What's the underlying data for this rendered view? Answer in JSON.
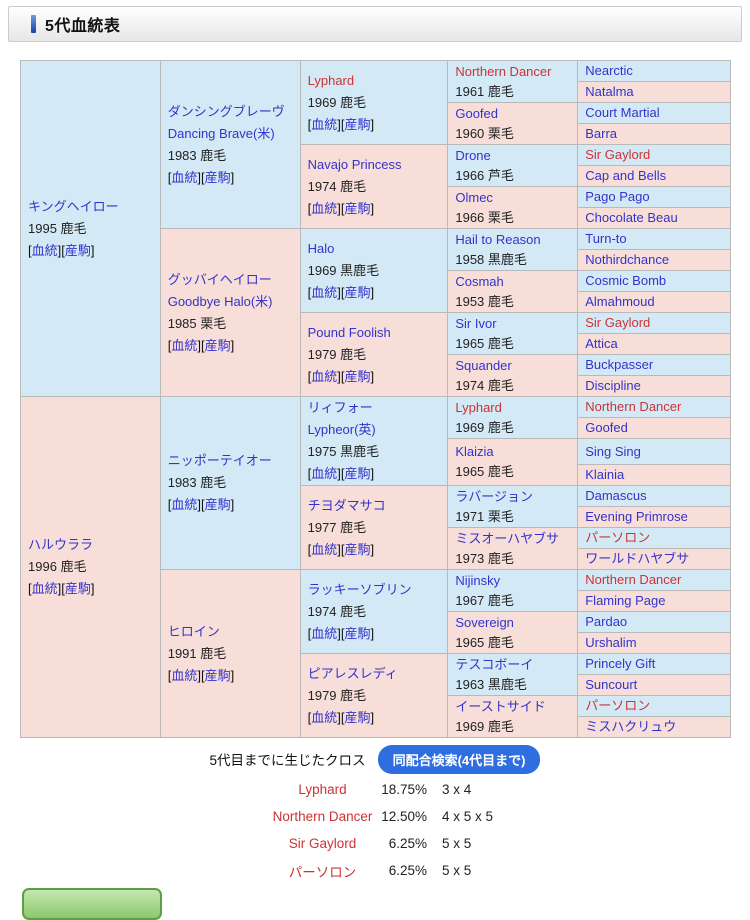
{
  "header": {
    "title": "5代血統表"
  },
  "colors": {
    "male_bg": "#d4e9f6",
    "female_bg": "#f8ded8",
    "link_blue": "#3333cc",
    "cross_red": "#cc3333",
    "search_button_blue": "#2e6ee0",
    "green_button": "#8cc86d"
  },
  "pedigree": {
    "link_labels": {
      "blood": "血統",
      "offspring": "産駒"
    },
    "generations": [
      [
        {
          "name": "キングヘイロー",
          "detail": "1995 鹿毛",
          "links": true,
          "sex": "m",
          "red": false
        },
        {
          "name": "ハルウララ",
          "detail": "1996 鹿毛",
          "links": true,
          "sex": "f",
          "red": false
        }
      ],
      [
        {
          "name": "ダンシングブレーヴ",
          "en": "Dancing Brave(米)",
          "detail": "1983 鹿毛",
          "links": true,
          "sex": "m",
          "red": false
        },
        {
          "name": "グッバイヘイロー",
          "en": "Goodbye Halo(米)",
          "detail": "1985 栗毛",
          "links": true,
          "sex": "f",
          "red": false
        },
        {
          "name": "ニッポーテイオー",
          "detail": "1983 鹿毛",
          "links": true,
          "sex": "m",
          "red": false
        },
        {
          "name": "ヒロイン",
          "detail": "1991 鹿毛",
          "links": true,
          "sex": "f",
          "red": false
        }
      ],
      [
        {
          "name": "Lyphard",
          "detail": "1969 鹿毛",
          "links": true,
          "sex": "m",
          "red": true
        },
        {
          "name": "Navajo Princess",
          "detail": "1974 鹿毛",
          "links": true,
          "sex": "f",
          "red": false
        },
        {
          "name": "Halo",
          "detail": "1969 黒鹿毛",
          "links": true,
          "sex": "m",
          "red": false
        },
        {
          "name": "Pound Foolish",
          "detail": "1979 鹿毛",
          "links": true,
          "sex": "f",
          "red": false
        },
        {
          "name": "リィフォー",
          "en": "Lypheor(英)",
          "detail": "1975 黒鹿毛",
          "links": true,
          "sex": "m",
          "red": false
        },
        {
          "name": "チヨダマサコ",
          "detail": "1977 鹿毛",
          "links": true,
          "sex": "f",
          "red": false
        },
        {
          "name": "ラッキーソブリン",
          "detail": "1974 鹿毛",
          "links": true,
          "sex": "m",
          "red": false
        },
        {
          "name": "ピアレスレディ",
          "detail": "1979 鹿毛",
          "links": true,
          "sex": "f",
          "red": false
        }
      ],
      [
        {
          "name": "Northern Dancer",
          "detail": "1961 鹿毛",
          "sex": "m",
          "red": true
        },
        {
          "name": "Goofed",
          "detail": "1960 栗毛",
          "sex": "f",
          "red": false
        },
        {
          "name": "Drone",
          "detail": "1966 芦毛",
          "sex": "m",
          "red": false
        },
        {
          "name": "Olmec",
          "detail": "1966 栗毛",
          "sex": "f",
          "red": false
        },
        {
          "name": "Hail to Reason",
          "detail": "1958 黒鹿毛",
          "sex": "m",
          "red": false
        },
        {
          "name": "Cosmah",
          "detail": "1953 鹿毛",
          "sex": "f",
          "red": false
        },
        {
          "name": "Sir Ivor",
          "detail": "1965 鹿毛",
          "sex": "m",
          "red": false
        },
        {
          "name": "Squander",
          "detail": "1974 鹿毛",
          "sex": "f",
          "red": false
        },
        {
          "name": "Lyphard",
          "detail": "1969 鹿毛",
          "sex": "m",
          "red": true
        },
        {
          "name": "Klaizia",
          "detail": "1965 鹿毛",
          "sex": "f",
          "red": false
        },
        {
          "name": "ラバージョン",
          "detail": "1971 栗毛",
          "sex": "m",
          "red": false
        },
        {
          "name": "ミスオーハヤブサ",
          "detail": "1973 鹿毛",
          "sex": "f",
          "red": false
        },
        {
          "name": "Nijinsky",
          "detail": "1967 鹿毛",
          "sex": "m",
          "red": false
        },
        {
          "name": "Sovereign",
          "detail": "1965 鹿毛",
          "sex": "f",
          "red": false
        },
        {
          "name": "テスコボーイ",
          "detail": "1963 黒鹿毛",
          "sex": "m",
          "red": false
        },
        {
          "name": "イーストサイド",
          "detail": "1969 鹿毛",
          "sex": "f",
          "red": false
        }
      ],
      [
        {
          "name": "Nearctic",
          "sex": "m",
          "red": false
        },
        {
          "name": "Natalma",
          "sex": "f",
          "red": false
        },
        {
          "name": "Court Martial",
          "sex": "m",
          "red": false
        },
        {
          "name": "Barra",
          "sex": "f",
          "red": false
        },
        {
          "name": "Sir Gaylord",
          "sex": "m",
          "red": true
        },
        {
          "name": "Cap and Bells",
          "sex": "f",
          "red": false
        },
        {
          "name": "Pago Pago",
          "sex": "m",
          "red": false
        },
        {
          "name": "Chocolate Beau",
          "sex": "f",
          "red": false
        },
        {
          "name": "Turn-to",
          "sex": "m",
          "red": false
        },
        {
          "name": "Nothirdchance",
          "sex": "f",
          "red": false
        },
        {
          "name": "Cosmic Bomb",
          "sex": "m",
          "red": false
        },
        {
          "name": "Almahmoud",
          "sex": "f",
          "red": false
        },
        {
          "name": "Sir Gaylord",
          "sex": "m",
          "red": true
        },
        {
          "name": "Attica",
          "sex": "f",
          "red": false
        },
        {
          "name": "Buckpasser",
          "sex": "m",
          "red": false
        },
        {
          "name": "Discipline",
          "sex": "f",
          "red": false
        },
        {
          "name": "Northern Dancer",
          "sex": "m",
          "red": true
        },
        {
          "name": "Goofed",
          "sex": "f",
          "red": false
        },
        {
          "name": "Sing Sing",
          "sex": "m",
          "red": false
        },
        {
          "name": "Klainia",
          "sex": "f",
          "red": false
        },
        {
          "name": "Damascus",
          "sex": "m",
          "red": false
        },
        {
          "name": "Evening Primrose",
          "sex": "f",
          "red": false
        },
        {
          "name": "パーソロン",
          "sex": "m",
          "red": true
        },
        {
          "name": "ワールドハヤブサ",
          "sex": "f",
          "red": false
        },
        {
          "name": "Northern Dancer",
          "sex": "m",
          "red": true
        },
        {
          "name": "Flaming Page",
          "sex": "f",
          "red": false
        },
        {
          "name": "Pardao",
          "sex": "m",
          "red": false
        },
        {
          "name": "Urshalim",
          "sex": "f",
          "red": false
        },
        {
          "name": "Princely Gift",
          "sex": "m",
          "red": false
        },
        {
          "name": "Suncourt",
          "sex": "f",
          "red": false
        },
        {
          "name": "パーソロン",
          "sex": "m",
          "red": true
        },
        {
          "name": "ミスハクリュウ",
          "sex": "f",
          "red": false
        }
      ]
    ]
  },
  "cross_section": {
    "label": "5代目までに生じたクロス",
    "button_label": "同配合検索(4代目まで)",
    "crosses": [
      {
        "name": "Lyphard",
        "percent": "18.75%",
        "pattern": "3 x 4"
      },
      {
        "name": "Northern Dancer",
        "percent": "12.50%",
        "pattern": "4 x 5 x 5"
      },
      {
        "name": "Sir Gaylord",
        "percent": "6.25%",
        "pattern": "5 x 5"
      },
      {
        "name": "パーソロン",
        "percent": "6.25%",
        "pattern": "5 x 5"
      }
    ]
  }
}
